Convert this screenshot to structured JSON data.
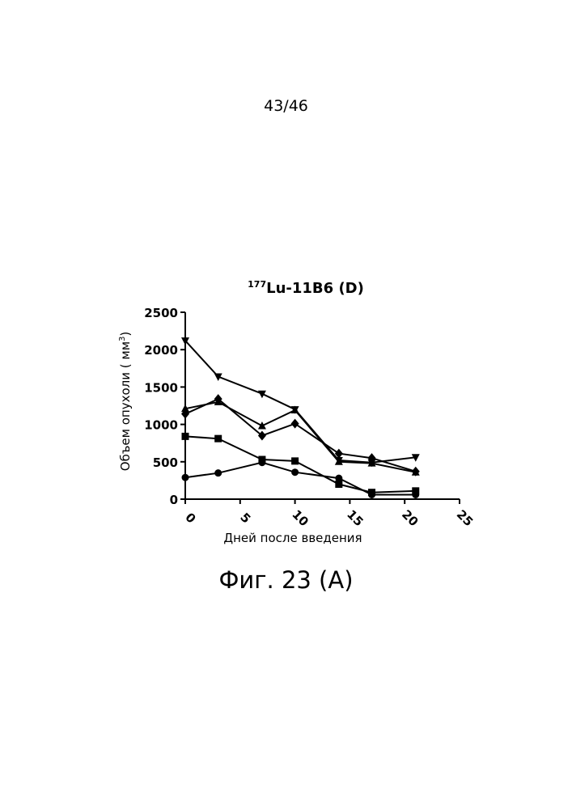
{
  "page": {
    "page_number": "43/46",
    "figure_caption": "Фиг. 23 (A)"
  },
  "chart_data": {
    "type": "line",
    "title_sup": "177",
    "title_main": "Lu-11B6 (D)",
    "xlabel": "Дней после введения",
    "ylabel_main": "Объем опухоли ( мм",
    "ylabel_sup": "3",
    "ylabel_end": ")",
    "xlim": [
      0,
      25
    ],
    "ylim": [
      0,
      2500
    ],
    "x_ticks": [
      0,
      5,
      10,
      15,
      20,
      25
    ],
    "y_ticks": [
      0,
      500,
      1000,
      1500,
      2000,
      2500
    ],
    "grid": false,
    "legend": false,
    "series": [
      {
        "marker": "circle",
        "x": [
          0,
          3,
          7,
          10,
          14,
          17,
          21
        ],
        "y": [
          290,
          350,
          490,
          360,
          280,
          60,
          60
        ]
      },
      {
        "marker": "square",
        "x": [
          0,
          3,
          7,
          10,
          14,
          17,
          21
        ],
        "y": [
          840,
          810,
          530,
          510,
          200,
          90,
          110
        ]
      },
      {
        "marker": "triangle-up",
        "x": [
          0,
          3,
          7,
          10,
          14,
          17,
          21
        ],
        "y": [
          1210,
          1300,
          980,
          1190,
          500,
          480,
          360
        ]
      },
      {
        "marker": "triangle-down",
        "x": [
          0,
          3,
          7,
          10,
          14,
          17,
          21
        ],
        "y": [
          2120,
          1640,
          1410,
          1200,
          520,
          490,
          560
        ]
      },
      {
        "marker": "diamond",
        "x": [
          0,
          3,
          7,
          10,
          14,
          17,
          21
        ],
        "y": [
          1140,
          1340,
          850,
          1010,
          610,
          550,
          370
        ]
      }
    ]
  }
}
